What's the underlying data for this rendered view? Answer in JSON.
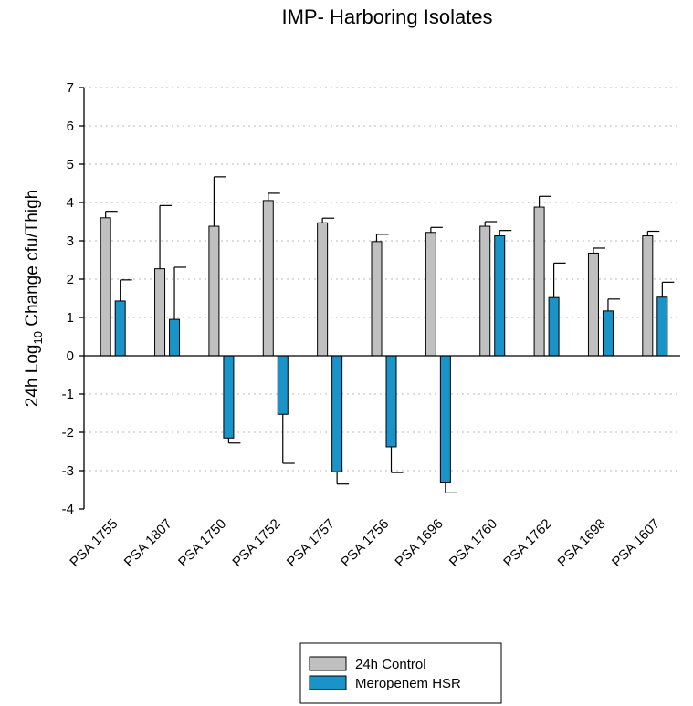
{
  "chart_data": {
    "type": "bar",
    "title": "IMP- Harboring Isolates",
    "ylabel_main": "24h Log",
    "ylabel_sub": "10",
    "ylabel_rest": " Change cfu/Thigh",
    "xlabel": "",
    "ylim": [
      -4,
      7
    ],
    "yticks": [
      -4,
      -3,
      -2,
      -1,
      0,
      1,
      2,
      3,
      4,
      5,
      6,
      7
    ],
    "grid": true,
    "legend_position": "bottom-center",
    "categories": [
      "PSA 1755",
      "PSA 1807",
      "PSA 1750",
      "PSA 1752",
      "PSA 1757",
      "PSA 1756",
      "PSA 1696",
      "PSA 1760",
      "PSA 1762",
      "PSA 1698",
      "PSA 1607"
    ],
    "series": [
      {
        "name": "24h Control",
        "color": "#c0c0c0",
        "values": [
          3.6,
          2.27,
          3.38,
          4.05,
          3.47,
          2.98,
          3.22,
          3.38,
          3.88,
          2.68,
          3.13
        ],
        "errors": [
          0.17,
          1.65,
          1.29,
          0.19,
          0.12,
          0.19,
          0.13,
          0.12,
          0.28,
          0.13,
          0.12
        ]
      },
      {
        "name": "Meropenem HSR",
        "color": "#1a93c8",
        "values": [
          1.43,
          0.95,
          -2.15,
          -1.53,
          -3.03,
          -2.38,
          -3.3,
          3.13,
          1.52,
          1.17,
          1.53
        ],
        "errors": [
          0.55,
          1.36,
          0.13,
          1.28,
          0.32,
          0.67,
          0.28,
          0.14,
          0.9,
          0.31,
          0.39
        ]
      }
    ]
  }
}
